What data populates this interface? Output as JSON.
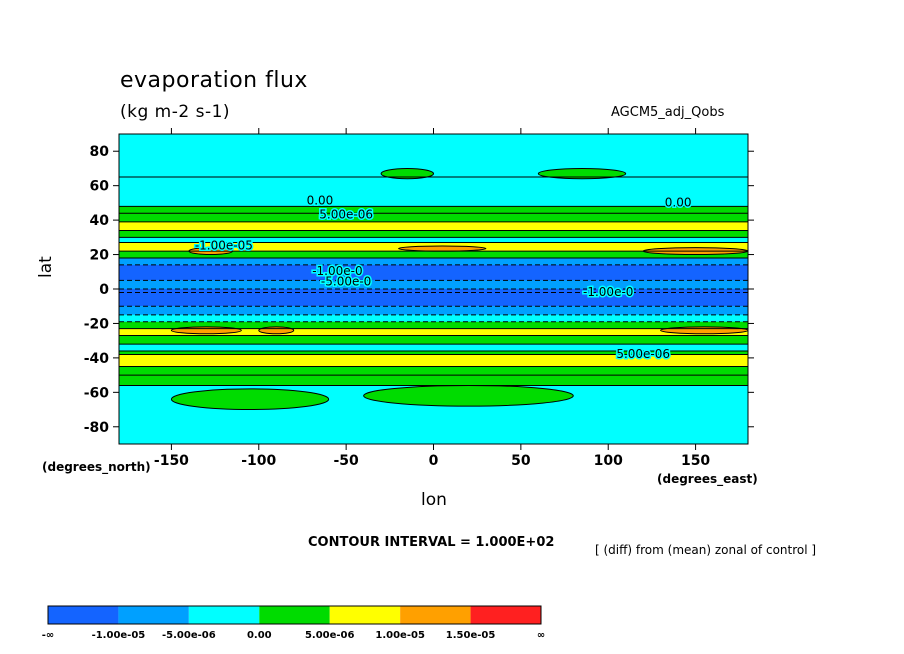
{
  "title": "evaporation flux",
  "units": "(kg m-2 s-1)",
  "run_label": "AGCM5_adj_Qobs",
  "x_unit_note": "(degrees_east)",
  "y_unit_note": "(degrees_north)",
  "contour_interval": "CONTOUR INTERVAL = 1.000E+02",
  "footnote": "[ (diff) from (mean) zonal of control ]",
  "chart_data": {
    "type": "heatmap",
    "title": "evaporation flux",
    "subtitle": "(kg m-2 s-1)",
    "xlabel": "lon",
    "ylabel": "lat",
    "xlim": [
      -180,
      180
    ],
    "ylim": [
      -90,
      90
    ],
    "x_ticks": [
      -150,
      -100,
      -50,
      0,
      50,
      100,
      150
    ],
    "y_ticks": [
      80,
      60,
      40,
      20,
      0,
      -20,
      -40,
      -60,
      -80
    ],
    "colorbar": {
      "labels": [
        "-∞",
        "-1.00e-05",
        "-5.00e-06",
        "0.00",
        "5.00e-06",
        "1.00e-05",
        "1.50e-05",
        "∞"
      ],
      "colors": [
        "#1464ff",
        "#00a0ff",
        "#00ffff",
        "#00dc00",
        "#ffff00",
        "#ffa000",
        "#ff2020"
      ]
    },
    "latitude_bands": [
      {
        "lat": [
          65,
          90
        ],
        "value_class": 2
      },
      {
        "lat": [
          48,
          65
        ],
        "value_class": 2
      },
      {
        "lat": [
          44,
          48
        ],
        "value_class": 3
      },
      {
        "lat": [
          39,
          44
        ],
        "value_class": 3
      },
      {
        "lat": [
          34,
          39
        ],
        "value_class": 4
      },
      {
        "lat": [
          30,
          34
        ],
        "value_class": 3
      },
      {
        "lat": [
          27,
          30
        ],
        "value_class": 2
      },
      {
        "lat": [
          22,
          27
        ],
        "value_class": 4
      },
      {
        "lat": [
          18,
          22
        ],
        "value_class": 3
      },
      {
        "lat": [
          14,
          18
        ],
        "value_class": 1
      },
      {
        "lat": [
          5,
          14
        ],
        "value_class": 0
      },
      {
        "lat": [
          -2,
          5
        ],
        "value_class": 1
      },
      {
        "lat": [
          -10,
          0
        ],
        "value_class": 0
      },
      {
        "lat": [
          -15,
          -10
        ],
        "value_class": 1
      },
      {
        "lat": [
          -19,
          -15
        ],
        "value_class": 2
      },
      {
        "lat": [
          -23,
          -19
        ],
        "value_class": 3
      },
      {
        "lat": [
          -27,
          -23
        ],
        "value_class": 4
      },
      {
        "lat": [
          -32,
          -27
        ],
        "value_class": 3
      },
      {
        "lat": [
          -36,
          -32
        ],
        "value_class": 2
      },
      {
        "lat": [
          -38,
          -36
        ],
        "value_class": 3
      },
      {
        "lat": [
          -45,
          -38
        ],
        "value_class": 4
      },
      {
        "lat": [
          -50,
          -45
        ],
        "value_class": 3
      },
      {
        "lat": [
          -56,
          -50
        ],
        "value_class": 3
      },
      {
        "lat": [
          -90,
          -56
        ],
        "value_class": 2
      }
    ],
    "patches": [
      {
        "lon": [
          -150,
          -110
        ],
        "lat": [
          -26,
          -22
        ],
        "value_class": 5
      },
      {
        "lon": [
          -100,
          -80
        ],
        "lat": [
          -26,
          -22
        ],
        "value_class": 5
      },
      {
        "lon": [
          -140,
          -115
        ],
        "lat": [
          20,
          24
        ],
        "value_class": 5
      },
      {
        "lon": [
          -20,
          30
        ],
        "lat": [
          22,
          25
        ],
        "value_class": 5
      },
      {
        "lon": [
          120,
          180
        ],
        "lat": [
          20,
          24
        ],
        "value_class": 5
      },
      {
        "lon": [
          130,
          180
        ],
        "lat": [
          -26,
          -22
        ],
        "value_class": 5
      },
      {
        "lon": [
          -150,
          -60
        ],
        "lat": [
          -70,
          -58
        ],
        "value_class": 3
      },
      {
        "lon": [
          -40,
          80
        ],
        "lat": [
          -68,
          -56
        ],
        "value_class": 3
      },
      {
        "lon": [
          60,
          110
        ],
        "lat": [
          64,
          70
        ],
        "value_class": 3
      },
      {
        "lon": [
          -30,
          0
        ],
        "lat": [
          64,
          70
        ],
        "value_class": 3
      }
    ],
    "contour_labels": [
      "0.00",
      "5.00e-06",
      "-1.00e-0",
      "-5.00e-0",
      "-1.00e-05",
      "0.00",
      "5.00e-06",
      "-1.00e-0"
    ]
  }
}
